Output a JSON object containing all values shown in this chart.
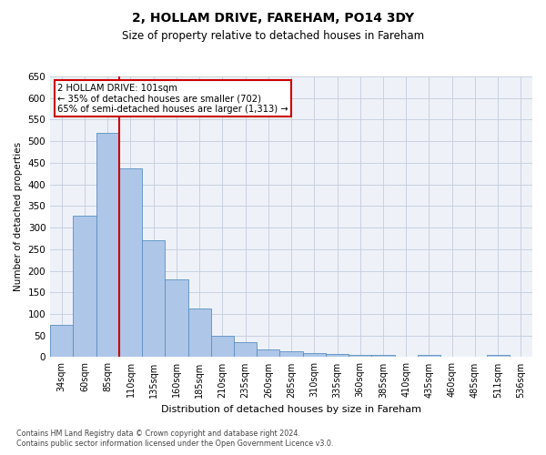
{
  "title": "2, HOLLAM DRIVE, FAREHAM, PO14 3DY",
  "subtitle": "Size of property relative to detached houses in Fareham",
  "xlabel": "Distribution of detached houses by size in Fareham",
  "ylabel": "Number of detached properties",
  "footnote1": "Contains HM Land Registry data © Crown copyright and database right 2024.",
  "footnote2": "Contains public sector information licensed under the Open Government Licence v3.0.",
  "bar_labels": [
    "34sqm",
    "60sqm",
    "85sqm",
    "110sqm",
    "135sqm",
    "160sqm",
    "185sqm",
    "210sqm",
    "235sqm",
    "260sqm",
    "285sqm",
    "310sqm",
    "335sqm",
    "360sqm",
    "385sqm",
    "410sqm",
    "435sqm",
    "460sqm",
    "485sqm",
    "511sqm",
    "536sqm"
  ],
  "bar_values": [
    75,
    327,
    519,
    437,
    271,
    181,
    113,
    50,
    34,
    17,
    13,
    10,
    7,
    5,
    5,
    0,
    5,
    0,
    0,
    5,
    0
  ],
  "bar_color": "#aec6e8",
  "bar_edge_color": "#5a8fc0",
  "grid_color": "#c8d0e0",
  "background_color": "#eef2f8",
  "annotation_text": "2 HOLLAM DRIVE: 101sqm\n← 35% of detached houses are smaller (702)\n65% of semi-detached houses are larger (1,313) →",
  "annotation_box_color": "#ffffff",
  "annotation_box_edge": "#cc0000",
  "vline_x": 2.5,
  "vline_color": "#cc0000",
  "ylim": [
    0,
    650
  ],
  "yticks": [
    0,
    50,
    100,
    150,
    200,
    250,
    300,
    350,
    400,
    450,
    500,
    550,
    600,
    650
  ]
}
